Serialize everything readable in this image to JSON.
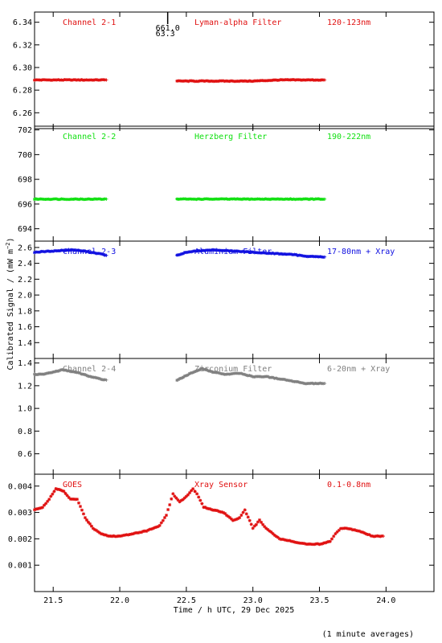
{
  "chart_data": {
    "type": "scatter",
    "title": "",
    "ylabel": "Calibrated Signal / (mW m",
    "ylabel_sup": "−2",
    "ylabel_end": ")",
    "xlabel": "Time / h UTC, 29 Dec 2025",
    "footnote": "(1 minute averages)",
    "xlim": [
      21.36,
      24.36
    ],
    "xticks": [
      21.5,
      22.0,
      22.5,
      23.0,
      23.5,
      24.0
    ],
    "xtick_labels": [
      "21.5",
      "22.0",
      "22.5",
      "23.0",
      "23.5",
      "24.0"
    ],
    "marker_note": {
      "top": "661.0",
      "bottom": "63.3",
      "x": 22.36
    },
    "panels": [
      {
        "name": "channel-2-1",
        "annotations": [
          "Channel 2-1",
          "Lyman-alpha Filter",
          "120-123nm"
        ],
        "color": "#e01010",
        "ylim": [
          6.246,
          6.349
        ],
        "yticks": [
          6.26,
          6.28,
          6.3,
          6.32,
          6.34
        ],
        "ytick_labels": [
          "6.26",
          "6.28",
          "6.30",
          "6.32",
          "6.34"
        ],
        "series": [
          {
            "x": [
              21.36,
              21.45,
              21.55,
              21.65,
              21.75,
              21.85,
              21.9
            ],
            "y": [
              6.289,
              6.289,
              6.289,
              6.289,
              6.289,
              6.289,
              6.289
            ]
          },
          {
            "x": [
              22.43,
              22.6,
              22.8,
              23.0,
              23.2,
              23.4,
              23.54
            ],
            "y": [
              6.288,
              6.288,
              6.288,
              6.288,
              6.289,
              6.289,
              6.289
            ]
          }
        ]
      },
      {
        "name": "channel-2-2",
        "annotations": [
          "Channel 2-2",
          "Herzberg Filter",
          "190-222nm"
        ],
        "color": "#11e011",
        "ylim": [
          693.0,
          702.3
        ],
        "yticks": [
          694,
          696,
          698,
          700,
          702
        ],
        "ytick_labels": [
          "694",
          "696",
          "698",
          "700",
          "702"
        ],
        "series": [
          {
            "x": [
              21.36,
              21.5,
              21.65,
              21.8,
              21.9
            ],
            "y": [
              696.4,
              696.4,
              696.4,
              696.4,
              696.4
            ]
          },
          {
            "x": [
              22.43,
              22.6,
              22.8,
              23.0,
              23.2,
              23.4,
              23.54
            ],
            "y": [
              696.4,
              696.4,
              696.4,
              696.4,
              696.4,
              696.4,
              696.4
            ]
          }
        ]
      },
      {
        "name": "channel-2-3",
        "annotations": [
          "Channel 2-3",
          "Aluminium Filter",
          "17-80nm + Xray"
        ],
        "color": "#1010e0",
        "ylim": [
          1.2,
          2.68
        ],
        "yticks": [
          1.4,
          1.6,
          1.8,
          2.0,
          2.2,
          2.4,
          2.6
        ],
        "ytick_labels": [
          "1.4",
          "1.6",
          "1.8",
          "2.0",
          "2.2",
          "2.4",
          "2.6"
        ],
        "series": [
          {
            "x": [
              21.36,
              21.45,
              21.55,
              21.65,
              21.75,
              21.85,
              21.9
            ],
            "y": [
              2.54,
              2.55,
              2.56,
              2.57,
              2.55,
              2.52,
              2.5
            ]
          },
          {
            "x": [
              22.43,
              22.5,
              22.6,
              22.7,
              22.8,
              22.9,
              23.0,
              23.1,
              23.2,
              23.3,
              23.4,
              23.54
            ],
            "y": [
              2.5,
              2.54,
              2.56,
              2.57,
              2.56,
              2.55,
              2.54,
              2.53,
              2.52,
              2.51,
              2.49,
              2.48
            ]
          }
        ]
      },
      {
        "name": "channel-2-4",
        "annotations": [
          "Channel 2-4",
          "Zirconium Filter",
          "6-20nm + Xray"
        ],
        "color": "#808080",
        "ylim": [
          0.42,
          1.44
        ],
        "yticks": [
          0.6,
          0.8,
          1.0,
          1.2,
          1.4
        ],
        "ytick_labels": [
          "0.6",
          "0.8",
          "1.0",
          "1.2",
          "1.4"
        ],
        "series": [
          {
            "x": [
              21.36,
              21.42,
              21.5,
              21.57,
              21.62,
              21.7,
              21.78,
              21.85,
              21.9
            ],
            "y": [
              1.3,
              1.3,
              1.32,
              1.34,
              1.33,
              1.31,
              1.28,
              1.26,
              1.25
            ]
          },
          {
            "x": [
              22.43,
              22.5,
              22.57,
              22.62,
              22.7,
              22.8,
              22.9,
              23.0,
              23.1,
              23.2,
              23.3,
              23.4,
              23.54
            ],
            "y": [
              1.25,
              1.29,
              1.33,
              1.35,
              1.32,
              1.3,
              1.31,
              1.28,
              1.28,
              1.26,
              1.24,
              1.22,
              1.22
            ]
          }
        ]
      },
      {
        "name": "goes-xray",
        "annotations": [
          "GOES",
          "Xray Sensor",
          "0.1-0.8nm"
        ],
        "color": "#e01010",
        "ylim": [
          0.0,
          0.00445
        ],
        "yticks": [
          0.001,
          0.002,
          0.003,
          0.004
        ],
        "ytick_labels": [
          "0.001",
          "0.002",
          "0.003",
          "0.004"
        ],
        "series": [
          {
            "x": [
              21.36,
              21.42,
              21.47,
              21.52,
              21.58,
              21.63,
              21.68,
              21.74,
              21.8,
              21.86,
              21.92,
              22.0,
              22.1,
              22.2,
              22.3,
              22.35,
              22.4,
              22.45,
              22.5,
              22.55,
              22.58,
              22.63,
              22.7,
              22.78,
              22.85,
              22.9,
              22.94,
              23.0,
              23.05,
              23.1,
              23.2,
              23.3,
              23.4,
              23.5,
              23.58,
              23.62,
              23.66,
              23.7,
              23.8,
              23.9,
              23.98
            ],
            "y": [
              0.0031,
              0.0032,
              0.0035,
              0.0039,
              0.0038,
              0.0035,
              0.0035,
              0.0028,
              0.0024,
              0.0022,
              0.0021,
              0.0021,
              0.0022,
              0.0023,
              0.0025,
              0.0029,
              0.0037,
              0.0034,
              0.0036,
              0.0039,
              0.0037,
              0.0032,
              0.0031,
              0.003,
              0.0027,
              0.0028,
              0.0031,
              0.0024,
              0.0027,
              0.0024,
              0.002,
              0.0019,
              0.0018,
              0.0018,
              0.0019,
              0.0022,
              0.0024,
              0.0024,
              0.0023,
              0.0021,
              0.0021
            ]
          }
        ]
      }
    ]
  }
}
